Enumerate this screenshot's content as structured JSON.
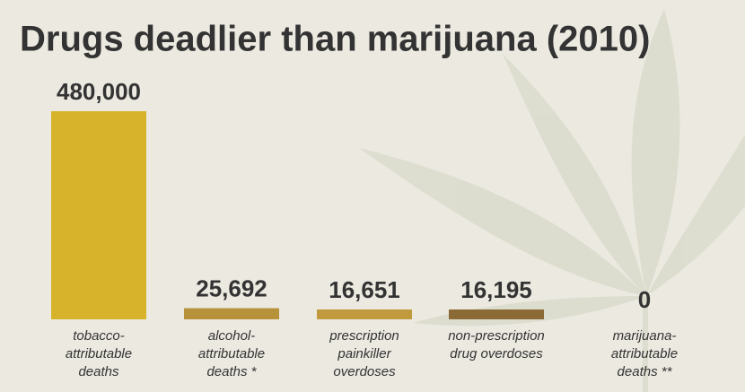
{
  "chart_data": {
    "type": "bar",
    "title": "Drugs deadlier than marijuana (2010)",
    "categories": [
      [
        "tobacco-",
        "attributable",
        "deaths"
      ],
      [
        "alcohol-",
        "attributable",
        "deaths *"
      ],
      [
        "prescription",
        "painkiller",
        "overdoses"
      ],
      [
        "non-prescription",
        "drug overdoses"
      ],
      [
        "marijuana-",
        "attributable",
        "deaths **"
      ]
    ],
    "values": [
      480000,
      25692,
      16651,
      16195,
      0
    ],
    "value_labels": [
      "480,000",
      "25,692",
      "16,651",
      "16,195",
      "0"
    ],
    "colors": [
      "#d6b32a",
      "#b8923a",
      "#c29a3e",
      "#8b6a36",
      "#8b6a36"
    ]
  }
}
